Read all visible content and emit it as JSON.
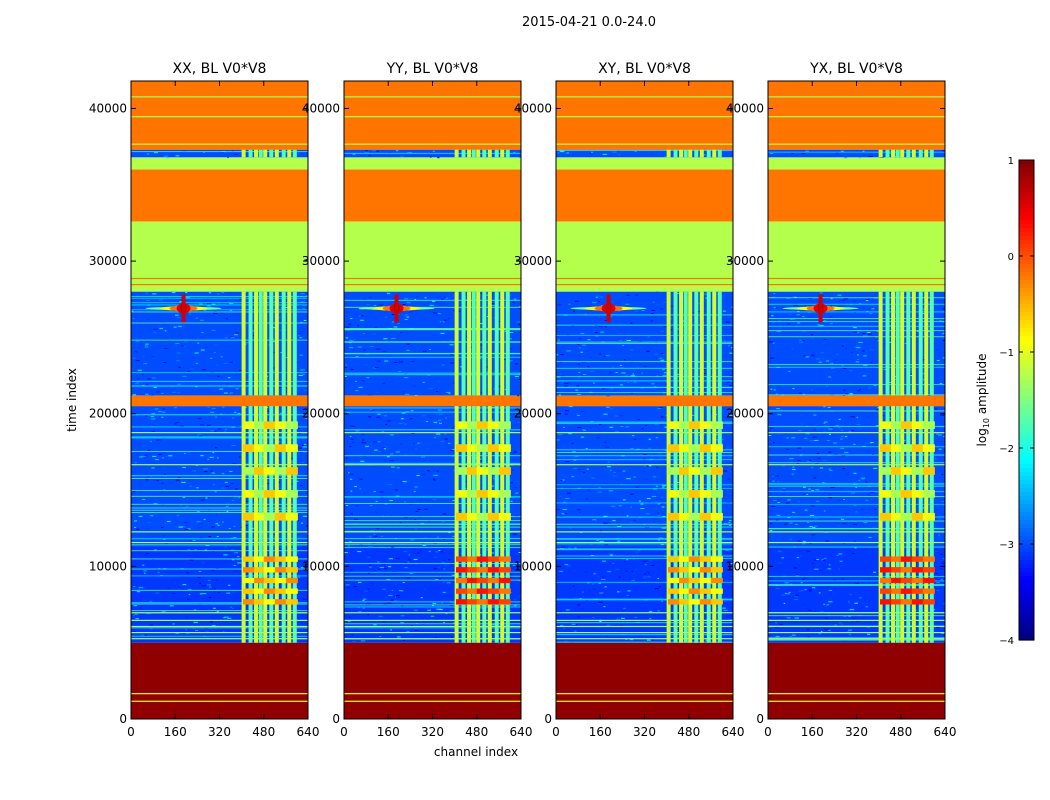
{
  "figure_title": "2015-04-21 0.0-24.0",
  "chart_data": {
    "type": "heatmap",
    "suptitle": "2015-04-21 0.0-24.0",
    "panels": [
      {
        "title": "XX, BL V0*V8"
      },
      {
        "title": "YY, BL V0*V8"
      },
      {
        "title": "XY, BL V0*V8"
      },
      {
        "title": "YX, BL V0*V8"
      }
    ],
    "xlabel": "channel index",
    "ylabel": "time index",
    "xlim": [
      0,
      640
    ],
    "ylim": [
      0,
      41800
    ],
    "xticks": [
      0,
      160,
      320,
      480,
      640
    ],
    "yticks": [
      0,
      10000,
      20000,
      30000,
      40000
    ],
    "colorbar": {
      "label": "log",
      "label_subscript": "10",
      "label_suffix": " amplitude",
      "range": [
        -4,
        1
      ],
      "ticks": [
        1,
        0,
        -1,
        -2,
        -3,
        -4
      ],
      "tick_labels": [
        "1",
        "0",
        "−1",
        "−2",
        "−3",
        "−4"
      ],
      "colormap": "jet"
    },
    "bands": [
      {
        "t0": 0,
        "t1": 5000,
        "value": 0.92,
        "note": "saturated, near max"
      },
      {
        "t0": 5000,
        "t1": 11300,
        "value": -3.1,
        "note": "noise with RFI channels 400-600"
      },
      {
        "t0": 11300,
        "t1": 20500,
        "value": -3.0,
        "note": "noise with RFI channels 400-600"
      },
      {
        "t0": 20500,
        "t1": 21200,
        "value": -0.2
      },
      {
        "t0": 21200,
        "t1": 28000,
        "value": -3.0,
        "note": "noise, bright source near channel 190 at ~27000"
      },
      {
        "t0": 28000,
        "t1": 32600,
        "value": -1.25
      },
      {
        "t0": 32600,
        "t1": 36000,
        "value": -0.2
      },
      {
        "t0": 36000,
        "t1": 36800,
        "value": -1.25
      },
      {
        "t0": 36800,
        "t1": 37300,
        "value": -3.0
      },
      {
        "t0": 37300,
        "t1": 41800,
        "value": -0.2
      }
    ]
  }
}
